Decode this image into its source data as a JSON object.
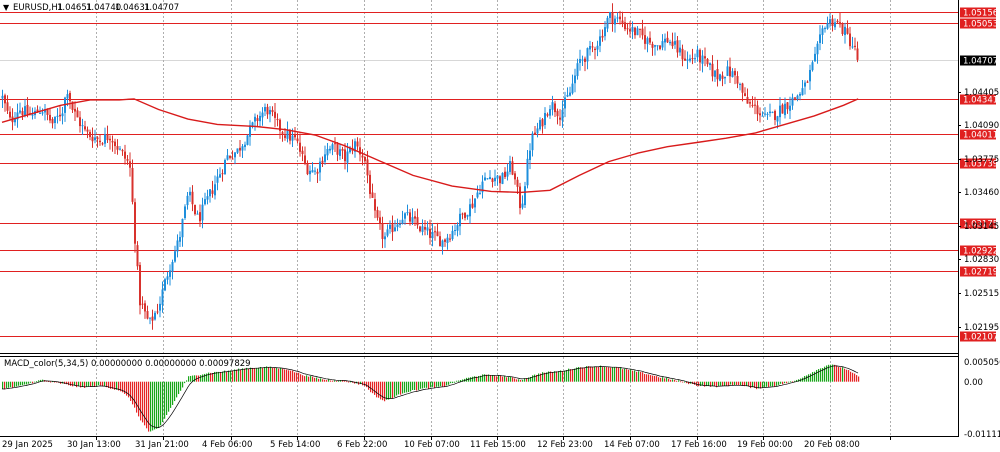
{
  "chart_data": [
    {
      "type": "candlestick",
      "title": "EURUSD,H1",
      "ohlc_readout": [
        "1.04651",
        "1.04740",
        "1.04631",
        "1.04707"
      ],
      "current_price": 1.04707,
      "current_price_label": "1.04707",
      "ylim": [
        1.0195,
        1.0527
      ],
      "grid": true,
      "price_axis_labels": [
        "1.04405",
        "1.04090",
        "1.03775",
        "1.03460",
        "1.03145",
        "1.02830",
        "1.02515",
        "1.02195"
      ],
      "price_axis_values": [
        1.04405,
        1.0409,
        1.03775,
        1.0346,
        1.03145,
        1.0283,
        1.02515,
        1.02195
      ],
      "horizontal_levels": [
        {
          "label": "1.05156",
          "value": 1.05156
        },
        {
          "label": "1.05053",
          "value": 1.05053
        },
        {
          "label": "1.04341",
          "value": 1.04341
        },
        {
          "label": "1.04011",
          "value": 1.04011
        },
        {
          "label": "1.03739",
          "value": 1.03739
        },
        {
          "label": "1.03175",
          "value": 1.03175
        },
        {
          "label": "1.02922",
          "value": 1.02922
        },
        {
          "label": "1.02719",
          "value": 1.02719
        },
        {
          "label": "1.02107",
          "value": 1.02107
        }
      ],
      "time_labels": [
        "29 Jan 2025",
        "30 Jan 13:00",
        "31 Jan 21:00",
        "4 Feb 06:00",
        "5 Feb 14:00",
        "6 Feb 22:00",
        "10 Feb 07:00",
        "11 Feb 15:00",
        "12 Feb 23:00",
        "14 Feb 07:00",
        "17 Feb 16:00",
        "19 Feb 00:00",
        "20 Feb 08:00"
      ],
      "price_path": [
        {
          "t": 0,
          "p": 1.0435
        },
        {
          "t": 0.8,
          "p": 1.0412
        },
        {
          "t": 1.6,
          "p": 1.0425
        },
        {
          "t": 3,
          "p": 1.0418
        },
        {
          "t": 4,
          "p": 1.0425
        },
        {
          "t": 5.2,
          "p": 1.041
        },
        {
          "t": 6.2,
          "p": 1.0425
        },
        {
          "t": 6.6,
          "p": 1.0445
        },
        {
          "t": 7.2,
          "p": 1.0423
        },
        {
          "t": 8.5,
          "p": 1.0402
        },
        {
          "t": 10,
          "p": 1.0395
        },
        {
          "t": 11,
          "p": 1.04
        },
        {
          "t": 12,
          "p": 1.0385
        },
        {
          "t": 13,
          "p": 1.0372
        },
        {
          "t": 14,
          "p": 1.0245
        },
        {
          "t": 15,
          "p": 1.0222
        },
        {
          "t": 16,
          "p": 1.024
        },
        {
          "t": 17,
          "p": 1.0275
        },
        {
          "t": 18,
          "p": 1.03
        },
        {
          "t": 19,
          "p": 1.0345
        },
        {
          "t": 20,
          "p": 1.032
        },
        {
          "t": 21,
          "p": 1.034
        },
        {
          "t": 22,
          "p": 1.036
        },
        {
          "t": 23,
          "p": 1.038
        },
        {
          "t": 24,
          "p": 1.0385
        },
        {
          "t": 25,
          "p": 1.04
        },
        {
          "t": 26,
          "p": 1.0415
        },
        {
          "t": 27,
          "p": 1.0425
        },
        {
          "t": 28,
          "p": 1.041
        },
        {
          "t": 29,
          "p": 1.04
        },
        {
          "t": 30,
          "p": 1.0395
        },
        {
          "t": 31,
          "p": 1.037
        },
        {
          "t": 32,
          "p": 1.0365
        },
        {
          "t": 33,
          "p": 1.0385
        },
        {
          "t": 34,
          "p": 1.0388
        },
        {
          "t": 35,
          "p": 1.0378
        },
        {
          "t": 36,
          "p": 1.0392
        },
        {
          "t": 37,
          "p": 1.0378
        },
        {
          "t": 38,
          "p": 1.0325
        },
        {
          "t": 39,
          "p": 1.0302
        },
        {
          "t": 40,
          "p": 1.0315
        },
        {
          "t": 41,
          "p": 1.0325
        },
        {
          "t": 42,
          "p": 1.0318
        },
        {
          "t": 43,
          "p": 1.031
        },
        {
          "t": 44,
          "p": 1.0305
        },
        {
          "t": 45,
          "p": 1.03
        },
        {
          "t": 46,
          "p": 1.031
        },
        {
          "t": 47,
          "p": 1.0325
        },
        {
          "t": 48,
          "p": 1.0335
        },
        {
          "t": 49,
          "p": 1.0355
        },
        {
          "t": 50,
          "p": 1.0362
        },
        {
          "t": 51,
          "p": 1.0358
        },
        {
          "t": 52,
          "p": 1.0372
        },
        {
          "t": 53,
          "p": 1.033
        },
        {
          "t": 54,
          "p": 1.0395
        },
        {
          "t": 55,
          "p": 1.041
        },
        {
          "t": 56,
          "p": 1.043
        },
        {
          "t": 57,
          "p": 1.042
        },
        {
          "t": 58,
          "p": 1.044
        },
        {
          "t": 59,
          "p": 1.047
        },
        {
          "t": 60,
          "p": 1.0478
        },
        {
          "t": 61,
          "p": 1.049
        },
        {
          "t": 62,
          "p": 1.0512
        },
        {
          "t": 63,
          "p": 1.0508
        },
        {
          "t": 64,
          "p": 1.05
        },
        {
          "t": 65,
          "p": 1.0495
        },
        {
          "t": 66,
          "p": 1.0488
        },
        {
          "t": 67,
          "p": 1.0485
        },
        {
          "t": 68,
          "p": 1.049
        },
        {
          "t": 69,
          "p": 1.048
        },
        {
          "t": 70,
          "p": 1.047
        },
        {
          "t": 71,
          "p": 1.0475
        },
        {
          "t": 72,
          "p": 1.0465
        },
        {
          "t": 73,
          "p": 1.0455
        },
        {
          "t": 74,
          "p": 1.046
        },
        {
          "t": 75,
          "p": 1.0455
        },
        {
          "t": 76,
          "p": 1.043
        },
        {
          "t": 77,
          "p": 1.0425
        },
        {
          "t": 78,
          "p": 1.0415
        },
        {
          "t": 79,
          "p": 1.042
        },
        {
          "t": 80,
          "p": 1.0428
        },
        {
          "t": 81,
          "p": 1.0435
        },
        {
          "t": 82,
          "p": 1.0445
        },
        {
          "t": 83,
          "p": 1.047
        },
        {
          "t": 84,
          "p": 1.0505
        },
        {
          "t": 85,
          "p": 1.0508
        },
        {
          "t": 86,
          "p": 1.0498
        },
        {
          "t": 87,
          "p": 1.0482
        },
        {
          "t": 87.5,
          "p": 1.04707
        }
      ],
      "moving_average": [
        {
          "t": 0,
          "p": 1.0412
        },
        {
          "t": 3,
          "p": 1.042
        },
        {
          "t": 6,
          "p": 1.0428
        },
        {
          "t": 9,
          "p": 1.0433
        },
        {
          "t": 12,
          "p": 1.0433
        },
        {
          "t": 13.5,
          "p": 1.0434
        },
        {
          "t": 16,
          "p": 1.0424
        },
        {
          "t": 19,
          "p": 1.0415
        },
        {
          "t": 22,
          "p": 1.041
        },
        {
          "t": 26,
          "p": 1.0408
        },
        {
          "t": 29,
          "p": 1.0405
        },
        {
          "t": 32,
          "p": 1.04
        },
        {
          "t": 35,
          "p": 1.039
        },
        {
          "t": 38,
          "p": 1.0378
        },
        {
          "t": 42,
          "p": 1.0362
        },
        {
          "t": 46,
          "p": 1.0352
        },
        {
          "t": 50,
          "p": 1.0347
        },
        {
          "t": 53,
          "p": 1.0346
        },
        {
          "t": 56,
          "p": 1.0348
        },
        {
          "t": 59,
          "p": 1.0362
        },
        {
          "t": 62,
          "p": 1.0375
        },
        {
          "t": 65,
          "p": 1.0383
        },
        {
          "t": 68,
          "p": 1.0389
        },
        {
          "t": 71,
          "p": 1.0393
        },
        {
          "t": 74,
          "p": 1.0397
        },
        {
          "t": 77,
          "p": 1.0402
        },
        {
          "t": 80,
          "p": 1.041
        },
        {
          "t": 83,
          "p": 1.0418
        },
        {
          "t": 86,
          "p": 1.0428
        },
        {
          "t": 87.5,
          "p": 1.0434
        }
      ]
    },
    {
      "type": "bar",
      "title": "MACD_color(5,34,5) 0.00000000 0.00000000 0.00097829",
      "ylim": [
        -0.011118,
        0.0050567
      ],
      "axis_labels": [
        "0.0050567",
        "0.00",
        "-0.0111180"
      ],
      "axis_values": [
        0.0050567,
        0.0,
        -0.011118
      ],
      "histogram_path": [
        {
          "t": 0,
          "v": -0.0015
        },
        {
          "t": 2,
          "v": -0.0008
        },
        {
          "t": 4,
          "v": 0.0004
        },
        {
          "t": 6,
          "v": -0.0004
        },
        {
          "t": 8,
          "v": -0.0012
        },
        {
          "t": 10,
          "v": -0.0008
        },
        {
          "t": 12,
          "v": -0.0018
        },
        {
          "t": 13,
          "v": -0.0035
        },
        {
          "t": 14,
          "v": -0.0075
        },
        {
          "t": 15,
          "v": -0.0104
        },
        {
          "t": 16,
          "v": -0.0095
        },
        {
          "t": 17,
          "v": -0.006
        },
        {
          "t": 18,
          "v": -0.0025
        },
        {
          "t": 19,
          "v": 0.001
        },
        {
          "t": 21,
          "v": 0.0018
        },
        {
          "t": 23,
          "v": 0.0022
        },
        {
          "t": 25,
          "v": 0.0028
        },
        {
          "t": 27,
          "v": 0.003
        },
        {
          "t": 29,
          "v": 0.0026
        },
        {
          "t": 31,
          "v": 0.0012
        },
        {
          "t": 33,
          "v": 0.0004
        },
        {
          "t": 35,
          "v": 0.0002
        },
        {
          "t": 37,
          "v": -0.0008
        },
        {
          "t": 38,
          "v": -0.0028
        },
        {
          "t": 39,
          "v": -0.004
        },
        {
          "t": 40,
          "v": -0.0032
        },
        {
          "t": 41,
          "v": -0.0022
        },
        {
          "t": 43,
          "v": -0.0014
        },
        {
          "t": 45,
          "v": -0.001
        },
        {
          "t": 47,
          "v": 0.0005
        },
        {
          "t": 49,
          "v": 0.0014
        },
        {
          "t": 51,
          "v": 0.0012
        },
        {
          "t": 53,
          "v": 0.0004
        },
        {
          "t": 55,
          "v": 0.0018
        },
        {
          "t": 57,
          "v": 0.0022
        },
        {
          "t": 59,
          "v": 0.003
        },
        {
          "t": 61,
          "v": 0.0032
        },
        {
          "t": 63,
          "v": 0.0028
        },
        {
          "t": 65,
          "v": 0.002
        },
        {
          "t": 67,
          "v": 0.001
        },
        {
          "t": 69,
          "v": 0.0002
        },
        {
          "t": 71,
          "v": -0.0008
        },
        {
          "t": 73,
          "v": -0.001
        },
        {
          "t": 75,
          "v": -0.0006
        },
        {
          "t": 77,
          "v": -0.0014
        },
        {
          "t": 79,
          "v": -0.0008
        },
        {
          "t": 81,
          "v": 0.0002
        },
        {
          "t": 83,
          "v": 0.0022
        },
        {
          "t": 84.5,
          "v": 0.0036
        },
        {
          "t": 86,
          "v": 0.0028
        },
        {
          "t": 87.5,
          "v": 0.001
        }
      ]
    }
  ],
  "colors": {
    "bull": "#1e8fdc",
    "bear": "#d8322d",
    "level_line": "#e02020",
    "level_label_bg": "#e02020",
    "ma_line": "#d81b1b",
    "macd_up": "#1aa61a",
    "macd_down": "#e52424",
    "grid": "#7a7a7a",
    "current_label_bg": "#000000"
  }
}
